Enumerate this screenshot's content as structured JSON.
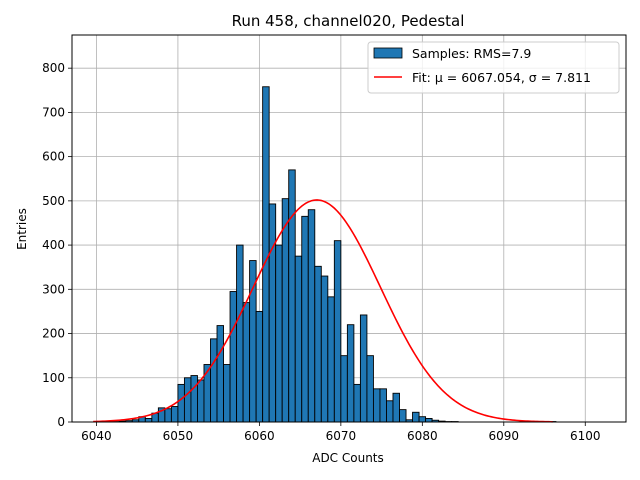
{
  "chart_data": {
    "type": "bar",
    "title": "Run 458, channel020, Pedestal",
    "xlabel": "ADC Counts",
    "ylabel": "Entries",
    "xlim": [
      6037,
      6105
    ],
    "ylim": [
      0,
      875
    ],
    "xticks": [
      "6040",
      "6050",
      "6060",
      "6070",
      "6080",
      "6090",
      "6100"
    ],
    "yticks": [
      "0",
      "100",
      "200",
      "300",
      "400",
      "500",
      "600",
      "700",
      "800"
    ],
    "grid": true,
    "legend_position": "top-right",
    "bar_color": "#1f77b4",
    "fit_color": "#ff0000",
    "bin_width": 0.8,
    "histogram": {
      "name": "Samples: RMS=7.9",
      "bin_start": [
        6039.6,
        6040.4,
        6041.2,
        6042.0,
        6042.8,
        6043.6,
        6044.4,
        6045.2,
        6046.0,
        6046.8,
        6047.6,
        6048.4,
        6049.2,
        6050.0,
        6050.8,
        6051.6,
        6052.4,
        6053.2,
        6054.0,
        6054.8,
        6055.6,
        6056.4,
        6057.2,
        6058.0,
        6058.8,
        6059.6,
        6060.4,
        6061.2,
        6062.0,
        6062.8,
        6063.6,
        6064.4,
        6065.2,
        6066.0,
        6066.8,
        6067.6,
        6068.4,
        6069.2,
        6070.0,
        6070.8,
        6071.6,
        6072.4,
        6073.2,
        6074.0,
        6074.8,
        6075.6,
        6076.4,
        6077.2,
        6078.0,
        6078.8,
        6079.6,
        6080.4,
        6081.2,
        6082.0,
        6082.8,
        6083.6,
        6084.4,
        6085.2,
        6086.0,
        6086.8,
        6087.6,
        6088.4,
        6089.2,
        6090.0,
        6090.8,
        6091.6,
        6092.4,
        6093.2,
        6094.0,
        6094.8,
        6095.6
      ],
      "counts": [
        0,
        1,
        0,
        1,
        2,
        3,
        5,
        12,
        8,
        20,
        32,
        30,
        35,
        85,
        100,
        105,
        95,
        130,
        188,
        218,
        130,
        295,
        400,
        270,
        365,
        250,
        758,
        493,
        400,
        505,
        570,
        375,
        465,
        480,
        352,
        330,
        283,
        410,
        150,
        220,
        85,
        242,
        150,
        75,
        75,
        48,
        65,
        28,
        5,
        22,
        12,
        8,
        4,
        2,
        1,
        1,
        0,
        0,
        0,
        0,
        0,
        0,
        0,
        0,
        0,
        0,
        0,
        0,
        0,
        0,
        1
      ]
    },
    "fit": {
      "name": "Fit: μ = 6067.054, σ = 7.811",
      "mu": 6067.054,
      "sigma": 7.811,
      "amplitude": 502,
      "x_range": [
        6039.6,
        6096.0
      ]
    }
  }
}
